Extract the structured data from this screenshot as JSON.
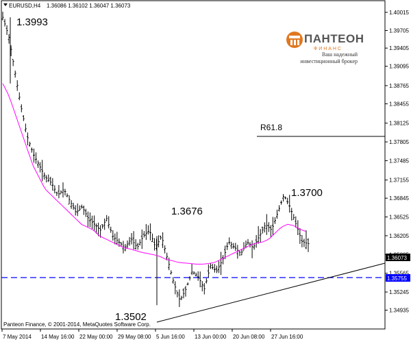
{
  "chart_header": {
    "symbol": "EURUSD,H4",
    "ohlc": "1.36086 1.36102 1.36047 1.36073"
  },
  "logo": {
    "brand": "ПАНТЕОН",
    "sub": "Ф И Н А Н С",
    "tagline1": "Ваш надежный",
    "tagline2": "инвестиционный брокер"
  },
  "copyright": "Panteon Finance, © 2001-2014, MetaQuotes Software Corp.",
  "annotations": {
    "high": "1.3993",
    "low": "1.3502",
    "mid_high": "1.3676",
    "recent_high": "1.3700",
    "fib": "R61.8"
  },
  "price_labels": {
    "current": "1.36073",
    "support": "1.35755"
  },
  "colors": {
    "ma": "#ff00ff",
    "support_line": "#0000ff",
    "current_box": "#000000",
    "support_box": "#0000ff"
  },
  "chart_data": {
    "type": "line",
    "title": "EURUSD,H4",
    "y_ticks": [
      "1.40015",
      "1.39705",
      "1.39405",
      "1.39095",
      "1.38765",
      "1.38455",
      "1.38125",
      "1.37805",
      "1.37485",
      "1.37155",
      "1.36845",
      "1.36525",
      "1.36205",
      "1.35885",
      "1.35565",
      "1.35245",
      "1.34935"
    ],
    "x_ticks": [
      "7 May 2014",
      "14 May 16:00",
      "22 May 00:00",
      "29 May 08:00",
      "5 Jun 16:00",
      "13 Jun 00:00",
      "20 Jun 08:00",
      "27 Jun 16:00"
    ],
    "ylim": [
      1.3493,
      1.4005
    ],
    "series": [
      {
        "values": [
          1.3993,
          1.396,
          1.39,
          1.384,
          1.379,
          1.376,
          1.374,
          1.372,
          1.371,
          1.369,
          1.37,
          1.368,
          1.366,
          1.367,
          1.365,
          1.364,
          1.363,
          1.365,
          1.362,
          1.361,
          1.36,
          1.3615,
          1.36,
          1.362,
          1.363,
          1.36,
          1.362,
          1.358,
          1.354,
          1.351,
          1.353,
          1.356,
          1.355,
          1.353,
          1.357,
          1.356,
          1.358,
          1.361,
          1.36,
          1.359,
          1.361,
          1.36,
          1.362,
          1.364,
          1.363,
          1.366,
          1.369,
          1.367,
          1.364,
          1.361,
          1.3607
        ]
      },
      {
        "values": [
          1.388,
          1.386,
          1.383,
          1.38,
          1.377,
          1.374,
          1.372,
          1.37,
          1.369,
          1.368,
          1.367,
          1.366,
          1.365,
          1.364,
          1.3635,
          1.363,
          1.362,
          1.3615,
          1.361,
          1.3605,
          1.36,
          1.3598,
          1.3595,
          1.3592,
          1.359,
          1.3588,
          1.3585,
          1.358,
          1.3578,
          1.3575,
          1.3574,
          1.3573,
          1.3572,
          1.3572,
          1.3573,
          1.3575,
          1.358,
          1.3585,
          1.359,
          1.3595,
          1.36,
          1.3605,
          1.3608,
          1.361,
          1.3615,
          1.3625,
          1.3635,
          1.364,
          1.3638,
          1.3632,
          1.3628
        ]
      }
    ]
  }
}
